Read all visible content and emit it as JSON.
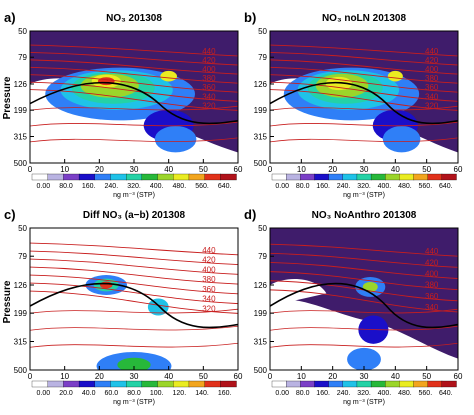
{
  "figure": {
    "ylabel": "Pressure",
    "cbar_unit": "ng m⁻³ (STP)"
  },
  "chart_data": [
    {
      "type": "heatmap",
      "letter": "a)",
      "title": "NO₃  201308",
      "xticks": [
        "0",
        "10",
        "20",
        "30",
        "40",
        "50",
        "60"
      ],
      "yticks": [
        "50",
        "79",
        "126",
        "199",
        "315",
        "500"
      ],
      "xlim": [
        0,
        60
      ],
      "cbar_ticks": [
        "0.00",
        "80.0",
        "160.",
        "240.",
        "320.",
        "400.",
        "480.",
        "560.",
        "640."
      ],
      "contour_labels": [
        "440",
        "420",
        "400",
        "380",
        "360",
        "340",
        "320"
      ],
      "peak": {
        "x": 22,
        "y": 120,
        "value": 650
      }
    },
    {
      "type": "heatmap",
      "letter": "b)",
      "title": "NO₃  noLN  201308",
      "xticks": [
        "0",
        "10",
        "20",
        "30",
        "40",
        "50",
        "60"
      ],
      "yticks": [
        "50",
        "79",
        "126",
        "199",
        "315",
        "500"
      ],
      "xlim": [
        0,
        60
      ],
      "cbar_ticks": [
        "0.00",
        "80.0",
        "160.",
        "240.",
        "320.",
        "400.",
        "480.",
        "560.",
        "640."
      ],
      "contour_labels": [
        "440",
        "420",
        "400",
        "380",
        "360",
        "340",
        "320"
      ],
      "peak": {
        "x": 22,
        "y": 125,
        "value": 520
      }
    },
    {
      "type": "heatmap",
      "letter": "c)",
      "title": "Diff  NO₃  (a−b)  201308",
      "xticks": [
        "0",
        "10",
        "20",
        "30",
        "40",
        "50",
        "60"
      ],
      "yticks": [
        "50",
        "79",
        "126",
        "199",
        "315",
        "500"
      ],
      "xlim": [
        0,
        60
      ],
      "cbar_ticks": [
        "0.00",
        "20.0",
        "40.0",
        "60.0",
        "80.0",
        "100.",
        "120.",
        "140.",
        "160."
      ],
      "contour_labels": [
        "440",
        "420",
        "400",
        "380",
        "360",
        "340",
        "320"
      ],
      "peak": {
        "x": 22,
        "y": 126,
        "value": 160
      }
    },
    {
      "type": "heatmap",
      "letter": "d)",
      "title": "NO₃  NoAnthro  201308",
      "xticks": [
        "0",
        "10",
        "20",
        "30",
        "40",
        "50",
        "60"
      ],
      "yticks": [
        "50",
        "79",
        "126",
        "199",
        "315",
        "500"
      ],
      "xlim": [
        0,
        60
      ],
      "cbar_ticks": [
        "0.00",
        "80.0",
        "160.",
        "240.",
        "320.",
        "400.",
        "480.",
        "560.",
        "640."
      ],
      "contour_labels": [
        "440",
        "420",
        "400",
        "380",
        "360",
        "340"
      ],
      "peak": {
        "x": 32,
        "y": 130,
        "value": 520
      }
    }
  ],
  "colors": {
    "palette": [
      "#ffffff",
      "#b9b3e2",
      "#7b3fc7",
      "#1a0fc9",
      "#2f7ff7",
      "#1fc2e8",
      "#24d2a6",
      "#27b83a",
      "#9bd52a",
      "#eaec21",
      "#f2a51e",
      "#e1311a",
      "#b0121a"
    ],
    "background": "#3f1c6b",
    "contour": "#c81e1e"
  }
}
